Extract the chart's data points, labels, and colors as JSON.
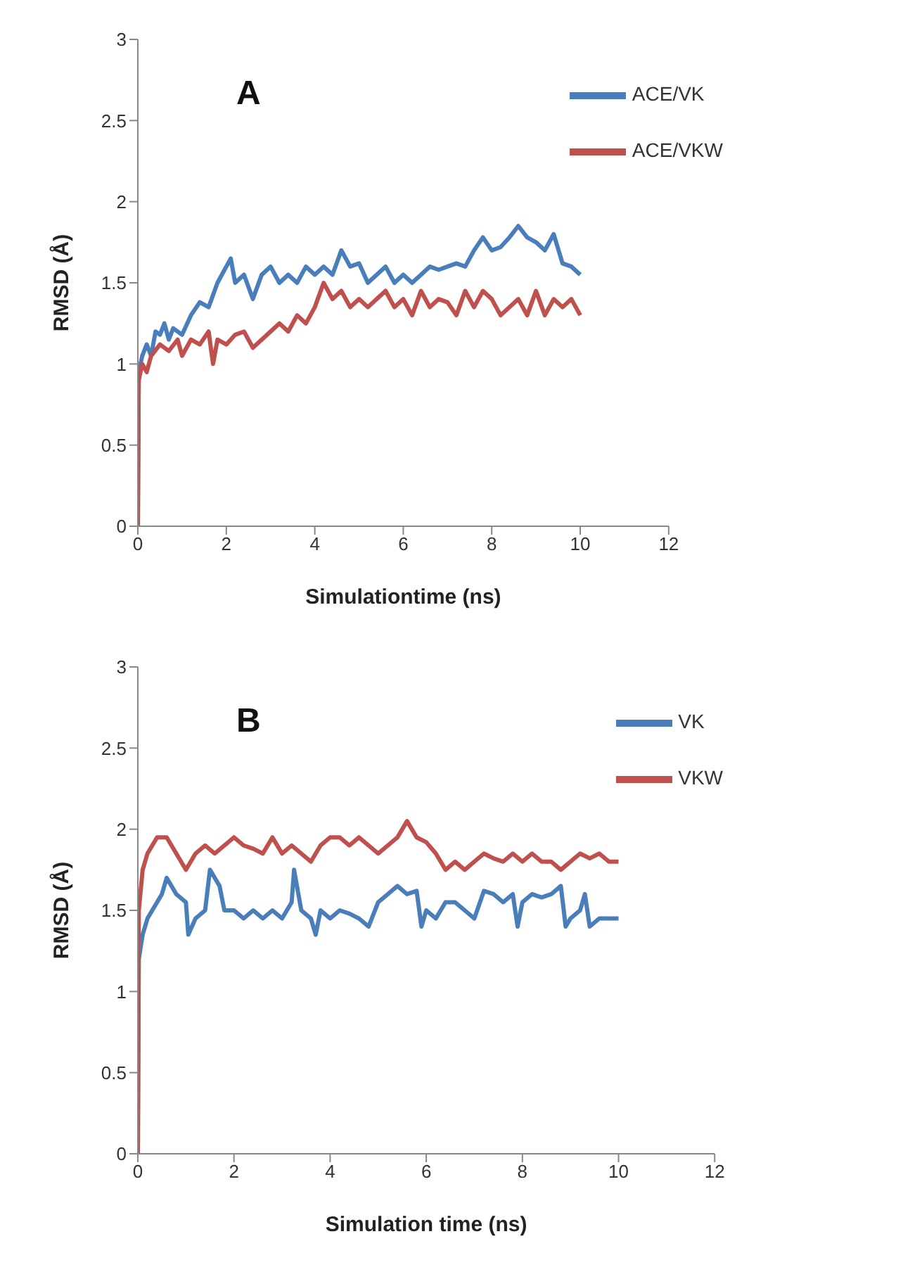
{
  "chart_data": [
    {
      "type": "line",
      "title": "A",
      "xlabel": "Simulationtime  (ns)",
      "ylabel": "RMSD (Å)",
      "xlim": [
        0,
        12
      ],
      "xticks": [
        0,
        2,
        4,
        6,
        8,
        10,
        12
      ],
      "ylim": [
        0,
        3
      ],
      "yticks": [
        0,
        0.5,
        1,
        1.5,
        2,
        2.5,
        3
      ],
      "grid": false,
      "legend": "top right",
      "marker": "none",
      "line_style": "solid",
      "series": [
        {
          "name": "ACE/VK",
          "color": "#4a7ebb",
          "x": [
            0,
            0.02,
            0.1,
            0.2,
            0.3,
            0.4,
            0.5,
            0.6,
            0.7,
            0.8,
            1.0,
            1.2,
            1.4,
            1.6,
            1.8,
            2.0,
            2.1,
            2.2,
            2.4,
            2.6,
            2.8,
            3.0,
            3.2,
            3.4,
            3.6,
            3.8,
            4.0,
            4.2,
            4.4,
            4.6,
            4.8,
            5.0,
            5.2,
            5.4,
            5.6,
            5.8,
            6.0,
            6.2,
            6.4,
            6.6,
            6.8,
            7.0,
            7.2,
            7.4,
            7.6,
            7.8,
            8.0,
            8.2,
            8.4,
            8.6,
            8.8,
            9.0,
            9.2,
            9.4,
            9.6,
            9.8,
            10.0
          ],
          "values": [
            0,
            0.95,
            1.05,
            1.12,
            1.05,
            1.2,
            1.18,
            1.25,
            1.15,
            1.22,
            1.18,
            1.3,
            1.38,
            1.35,
            1.5,
            1.6,
            1.65,
            1.5,
            1.55,
            1.4,
            1.55,
            1.6,
            1.5,
            1.55,
            1.5,
            1.6,
            1.55,
            1.6,
            1.55,
            1.7,
            1.6,
            1.62,
            1.5,
            1.55,
            1.6,
            1.5,
            1.55,
            1.5,
            1.55,
            1.6,
            1.58,
            1.6,
            1.62,
            1.6,
            1.7,
            1.78,
            1.7,
            1.72,
            1.78,
            1.85,
            1.78,
            1.75,
            1.7,
            1.8,
            1.62,
            1.6,
            1.55
          ]
        },
        {
          "name": "ACE/VKW",
          "color": "#c0504d",
          "x": [
            0,
            0.02,
            0.1,
            0.2,
            0.3,
            0.5,
            0.7,
            0.9,
            1.0,
            1.2,
            1.4,
            1.6,
            1.7,
            1.8,
            2.0,
            2.2,
            2.4,
            2.6,
            2.8,
            3.0,
            3.2,
            3.4,
            3.6,
            3.8,
            4.0,
            4.2,
            4.4,
            4.6,
            4.8,
            5.0,
            5.2,
            5.4,
            5.6,
            5.8,
            6.0,
            6.2,
            6.4,
            6.6,
            6.8,
            7.0,
            7.2,
            7.4,
            7.6,
            7.8,
            8.0,
            8.2,
            8.4,
            8.6,
            8.8,
            9.0,
            9.2,
            9.4,
            9.6,
            9.8,
            10.0
          ],
          "values": [
            0,
            0.9,
            1.0,
            0.95,
            1.05,
            1.12,
            1.08,
            1.15,
            1.05,
            1.15,
            1.12,
            1.2,
            1.0,
            1.15,
            1.12,
            1.18,
            1.2,
            1.1,
            1.15,
            1.2,
            1.25,
            1.2,
            1.3,
            1.25,
            1.35,
            1.5,
            1.4,
            1.45,
            1.35,
            1.4,
            1.35,
            1.4,
            1.45,
            1.35,
            1.4,
            1.3,
            1.45,
            1.35,
            1.4,
            1.38,
            1.3,
            1.45,
            1.35,
            1.45,
            1.4,
            1.3,
            1.35,
            1.4,
            1.3,
            1.45,
            1.3,
            1.4,
            1.35,
            1.4,
            1.3
          ]
        }
      ]
    },
    {
      "type": "line",
      "title": "B",
      "xlabel": "Simulation time  (ns)",
      "ylabel": "RMSD (Å)",
      "xlim": [
        0,
        12
      ],
      "xticks": [
        0,
        2,
        4,
        6,
        8,
        10,
        12
      ],
      "ylim": [
        0,
        3
      ],
      "yticks": [
        0,
        0.5,
        1,
        1.5,
        2,
        2.5,
        3
      ],
      "grid": false,
      "legend": "top right",
      "marker": "none",
      "line_style": "solid",
      "series": [
        {
          "name": "VK",
          "color": "#4a7ebb",
          "x": [
            0,
            0.02,
            0.1,
            0.2,
            0.3,
            0.5,
            0.6,
            0.8,
            1.0,
            1.05,
            1.2,
            1.4,
            1.5,
            1.7,
            1.8,
            2.0,
            2.2,
            2.4,
            2.6,
            2.8,
            3.0,
            3.2,
            3.25,
            3.4,
            3.6,
            3.7,
            3.8,
            4.0,
            4.2,
            4.4,
            4.6,
            4.8,
            5.0,
            5.2,
            5.4,
            5.6,
            5.8,
            5.9,
            6.0,
            6.2,
            6.4,
            6.6,
            6.8,
            7.0,
            7.2,
            7.4,
            7.6,
            7.8,
            7.9,
            8.0,
            8.2,
            8.4,
            8.6,
            8.8,
            8.9,
            9.0,
            9.2,
            9.3,
            9.4,
            9.6,
            9.8,
            10.0
          ],
          "values": [
            0,
            1.2,
            1.35,
            1.45,
            1.5,
            1.6,
            1.7,
            1.6,
            1.55,
            1.35,
            1.45,
            1.5,
            1.75,
            1.65,
            1.5,
            1.5,
            1.45,
            1.5,
            1.45,
            1.5,
            1.45,
            1.55,
            1.75,
            1.5,
            1.45,
            1.35,
            1.5,
            1.45,
            1.5,
            1.48,
            1.45,
            1.4,
            1.55,
            1.6,
            1.65,
            1.6,
            1.62,
            1.4,
            1.5,
            1.45,
            1.55,
            1.55,
            1.5,
            1.45,
            1.62,
            1.6,
            1.55,
            1.6,
            1.4,
            1.55,
            1.6,
            1.58,
            1.6,
            1.65,
            1.4,
            1.45,
            1.5,
            1.6,
            1.4,
            1.45,
            1.45,
            1.45
          ]
        },
        {
          "name": "VKW",
          "color": "#c0504d",
          "x": [
            0,
            0.02,
            0.1,
            0.2,
            0.3,
            0.4,
            0.6,
            0.8,
            1.0,
            1.2,
            1.4,
            1.6,
            1.8,
            2.0,
            2.2,
            2.4,
            2.6,
            2.8,
            3.0,
            3.2,
            3.4,
            3.6,
            3.8,
            4.0,
            4.2,
            4.4,
            4.6,
            4.8,
            5.0,
            5.2,
            5.4,
            5.6,
            5.8,
            6.0,
            6.2,
            6.4,
            6.6,
            6.8,
            7.0,
            7.2,
            7.4,
            7.6,
            7.8,
            8.0,
            8.2,
            8.4,
            8.6,
            8.8,
            9.0,
            9.2,
            9.4,
            9.6,
            9.8,
            10.0
          ],
          "values": [
            0,
            1.5,
            1.75,
            1.85,
            1.9,
            1.95,
            1.95,
            1.85,
            1.75,
            1.85,
            1.9,
            1.85,
            1.9,
            1.95,
            1.9,
            1.88,
            1.85,
            1.95,
            1.85,
            1.9,
            1.85,
            1.8,
            1.9,
            1.95,
            1.95,
            1.9,
            1.95,
            1.9,
            1.85,
            1.9,
            1.95,
            2.05,
            1.95,
            1.92,
            1.85,
            1.75,
            1.8,
            1.75,
            1.8,
            1.85,
            1.82,
            1.8,
            1.85,
            1.8,
            1.85,
            1.8,
            1.8,
            1.75,
            1.8,
            1.85,
            1.82,
            1.85,
            1.8,
            1.8
          ]
        }
      ]
    }
  ]
}
